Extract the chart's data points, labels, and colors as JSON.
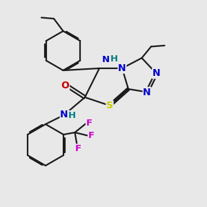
{
  "bg_color": "#e8e8e8",
  "bond_color": "#1a1a1a",
  "bond_width": 1.6,
  "atom_colors": {
    "N": "#0000cc",
    "S": "#cccc00",
    "O": "#cc0000",
    "F": "#cc00cc",
    "NH": "#008080",
    "C": "#1a1a1a"
  },
  "font_size_atoms": 10,
  "font_size_small": 8.5
}
